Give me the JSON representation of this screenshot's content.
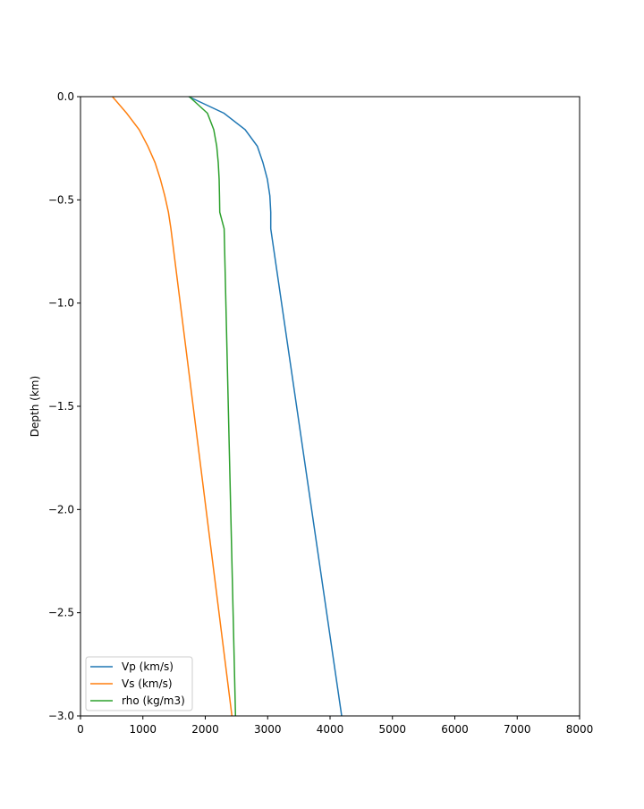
{
  "chart_data": {
    "type": "line",
    "title": "",
    "xlabel": "",
    "ylabel": "Depth (km)",
    "xlim": [
      0,
      8000
    ],
    "ylim": [
      -3.0,
      0.0
    ],
    "xticks": [
      "0",
      "1000",
      "2000",
      "3000",
      "4000",
      "5000",
      "6000",
      "7000",
      "8000"
    ],
    "xtick_values": [
      0,
      1000,
      2000,
      3000,
      4000,
      5000,
      6000,
      7000,
      8000
    ],
    "yticks": [
      "0.0",
      "−0.5",
      "−1.0",
      "−1.5",
      "−2.0",
      "−2.5",
      "−3.0"
    ],
    "ytick_values": [
      0.0,
      -0.5,
      -1.0,
      -1.5,
      -2.0,
      -2.5,
      -3.0
    ],
    "grid": false,
    "legend_position": "lower-left",
    "series": [
      {
        "name": "Vp (km/s)",
        "color": "#1f77b4",
        "x": [
          1735,
          2300,
          2640,
          2835,
          2925,
          2995,
          3035,
          3050,
          3050,
          4186
        ],
        "y": [
          0.0,
          -0.08,
          -0.16,
          -0.24,
          -0.32,
          -0.4,
          -0.48,
          -0.56,
          -0.64,
          -3.0
        ]
      },
      {
        "name": "Vs (km/s)",
        "color": "#ff7f0e",
        "x": [
          512,
          740,
          940,
          1080,
          1195,
          1280,
          1350,
          1410,
          1450,
          2427
        ],
        "y": [
          0.0,
          -0.08,
          -0.16,
          -0.24,
          -0.32,
          -0.4,
          -0.48,
          -0.56,
          -0.64,
          -3.0
        ]
      },
      {
        "name": "rho (kg/m3)",
        "color": "#2ca02c",
        "x": [
          1744,
          2035,
          2136,
          2184,
          2208,
          2222,
          2228,
          2232,
          2303,
          2485
        ],
        "y": [
          0.0,
          -0.08,
          -0.16,
          -0.24,
          -0.32,
          -0.4,
          -0.48,
          -0.56,
          -0.64,
          -3.0
        ]
      }
    ]
  }
}
